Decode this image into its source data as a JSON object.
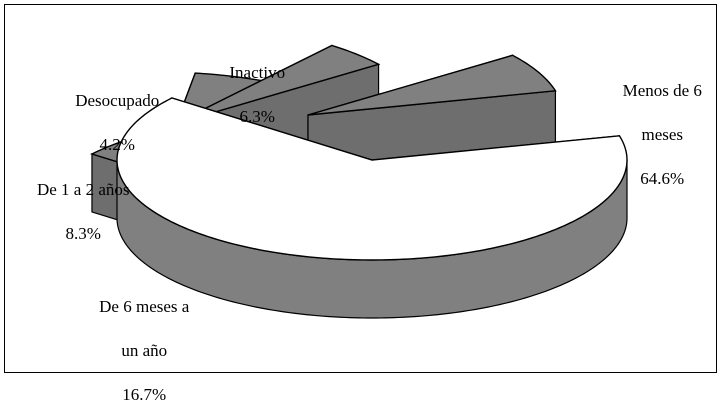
{
  "chart_data": {
    "type": "pie",
    "title": "",
    "style": "3d-exploded",
    "slices": [
      {
        "label": "Menos de 6 meses",
        "label_lines": [
          "Menos de 6",
          "meses"
        ],
        "value": 64.6,
        "value_text": "64.6%",
        "color": "#ffffff"
      },
      {
        "label": "De 6 meses a un año",
        "label_lines": [
          "De 6 meses a",
          "un año"
        ],
        "value": 16.7,
        "value_text": "16.7%",
        "color": "#808080"
      },
      {
        "label": "De 1 a 2 años",
        "label_lines": [
          "De 1 a 2 años"
        ],
        "value": 8.3,
        "value_text": "8.3%",
        "color": "#808080"
      },
      {
        "label": "Desocupado",
        "label_lines": [
          "Desocupado"
        ],
        "value": 4.2,
        "value_text": "4.2%",
        "color": "#808080"
      },
      {
        "label": "Inactivo",
        "label_lines": [
          "Inactivo"
        ],
        "value": 6.3,
        "value_text": "6.3%",
        "color": "#808080"
      }
    ]
  }
}
